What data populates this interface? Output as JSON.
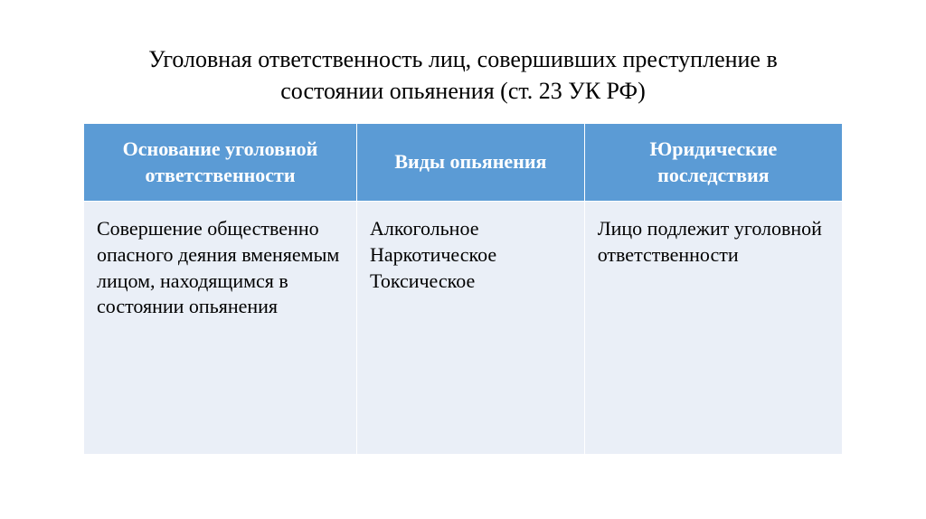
{
  "title": "Уголовная ответственность лиц, совершивших преступление в состоянии опьянения (ст. 23 УК РФ)",
  "table": {
    "columns": [
      "Основание уголовной ответственности",
      "Виды опьянения",
      "Юридические последствия"
    ],
    "column_widths": [
      "36%",
      "30%",
      "34%"
    ],
    "rows": [
      [
        "Совершение общественно опасного деяния вменяемым лицом, находящимся в состоянии опьянения",
        "Алкогольное\nНаркотическое\nТоксическое",
        "Лицо подлежит уголовной ответственности"
      ]
    ],
    "styling": {
      "header_bg": "#5b9bd5",
      "header_text_color": "#ffffff",
      "body_bg": "#eaeff7",
      "body_text_color": "#000000",
      "border_color": "#ffffff",
      "header_fontsize": 22,
      "body_fontsize": 22,
      "title_fontsize": 26,
      "font_family": "Times New Roman"
    }
  }
}
